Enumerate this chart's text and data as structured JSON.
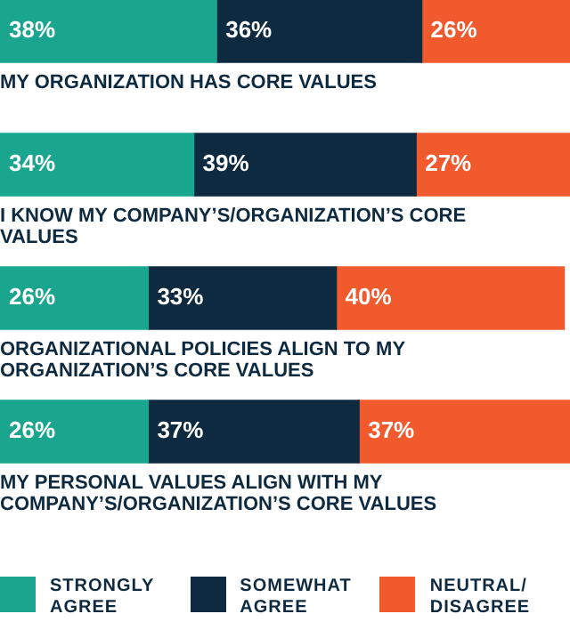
{
  "chart_data": {
    "type": "bar",
    "orientation": "horizontal",
    "stacked": true,
    "legend": "bottom",
    "categories": [
      "MY ORGANIZATION HAS CORE VALUES",
      "I KNOW MY COMPANY’S/ORGANIZATION’S CORE VALUES",
      "ORGANIZATIONAL POLICIES ALIGN TO MY ORGANIZATION’S CORE VALUES",
      "MY PERSONAL VALUES ALIGN WITH MY COMPANY’S/ORGANIZATION’S CORE VALUES"
    ],
    "series": [
      {
        "name": "STRONGLY AGREE",
        "color": "#1aa68e",
        "values": [
          38,
          34,
          26,
          26
        ],
        "value_labels": [
          "38%",
          "34%",
          "26%",
          "26%"
        ]
      },
      {
        "name": "SOMEWHAT AGREE",
        "color": "#0e2a40",
        "values": [
          36,
          39,
          33,
          37
        ],
        "value_labels": [
          "36%",
          "39%",
          "33%",
          "37%"
        ]
      },
      {
        "name": "NEUTRAL/ DISAGREE",
        "color": "#f05a2c",
        "values": [
          26,
          27,
          40,
          37
        ],
        "value_labels": [
          "26%",
          "27%",
          "40%",
          "37%"
        ]
      }
    ]
  }
}
